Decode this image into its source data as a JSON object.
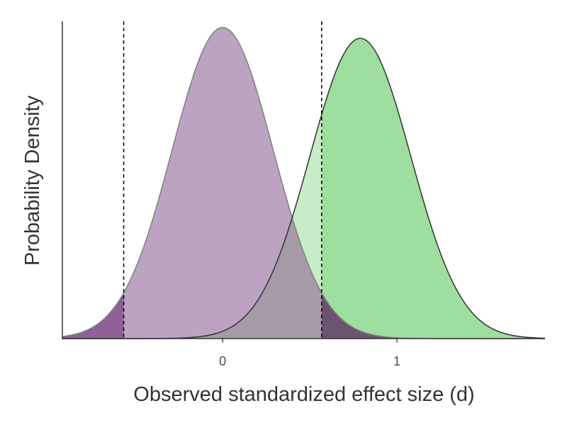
{
  "chart_data": {
    "type": "area",
    "title": "",
    "xlabel": "Observed standardized effect size (d)",
    "ylabel": "Probability Density",
    "xlim": [
      -0.92,
      1.85
    ],
    "ylim": [
      0,
      1.02
    ],
    "grid": false,
    "legend": "none",
    "x_ticks": [
      0,
      1
    ],
    "critical_values": [
      -0.568,
      0.568
    ],
    "series": [
      {
        "mean": 0,
        "sd": 0.29,
        "peak_density": 1.0,
        "fill": "#bca3c2",
        "stroke": "#808080",
        "tail_fill": "#8f6099"
      },
      {
        "mean": 0.79,
        "sd": 0.29,
        "peak_density": 0.965,
        "fill": "#9ede9e",
        "stroke": "#333333"
      }
    ],
    "colors": {
      "overlap": "#a69aa8",
      "alt_light": "#c8ebc8",
      "tail_overlap": "#6b546f",
      "axis": "#333333"
    }
  }
}
